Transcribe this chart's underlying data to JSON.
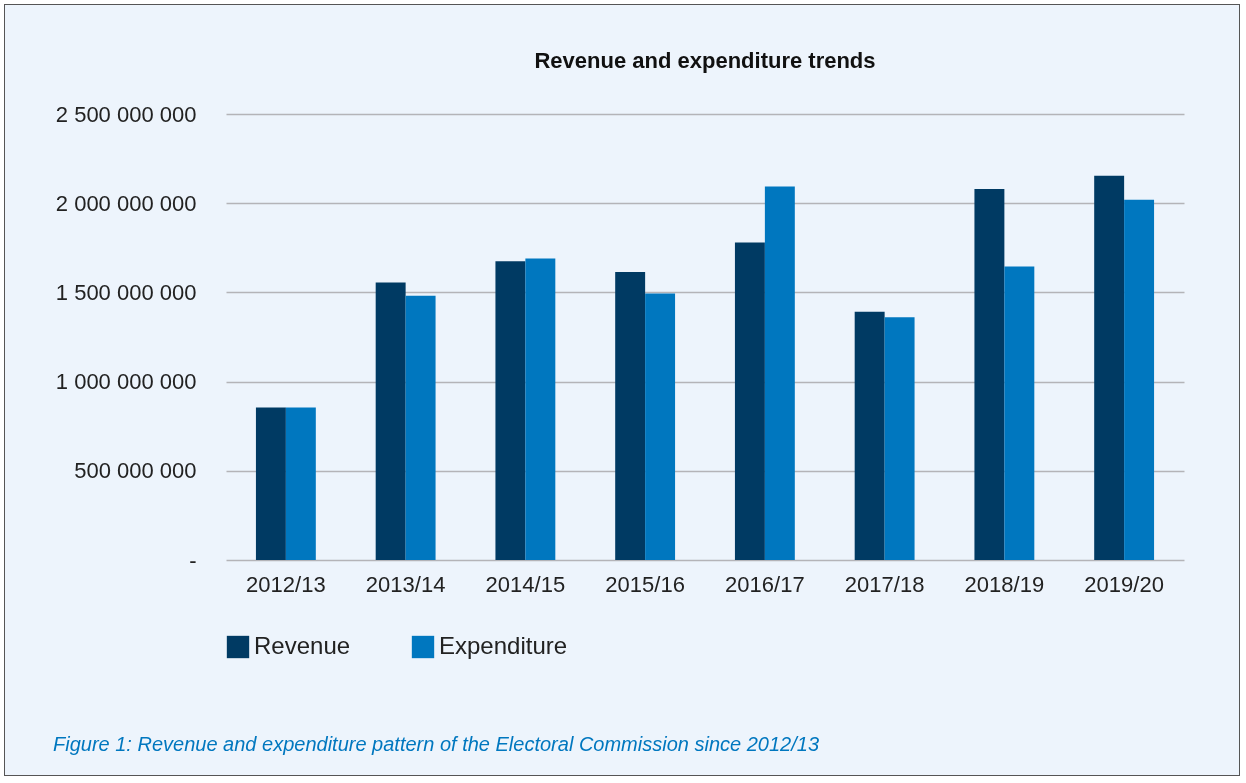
{
  "chart_data": {
    "type": "bar",
    "title": "Revenue and expenditure trends",
    "categories": [
      "2012/13",
      "2013/14",
      "2014/15",
      "2015/16",
      "2016/17",
      "2017/18",
      "2018/19",
      "2019/20"
    ],
    "series": [
      {
        "name": "Revenue",
        "color": "#003a63",
        "values": [
          855000000,
          1556000000,
          1675000000,
          1614000000,
          1780000000,
          1391000000,
          2079000000,
          2154000000
        ]
      },
      {
        "name": "Expenditure",
        "color": "#0077bf",
        "values": [
          855000000,
          1481000000,
          1690000000,
          1494000000,
          2094000000,
          1361000000,
          1645000000,
          2019000000
        ]
      }
    ],
    "ylim": [
      0,
      2500000000
    ],
    "yticks": [
      {
        "value": 0,
        "label": "-"
      },
      {
        "value": 500000000,
        "label": "500 000 000"
      },
      {
        "value": 1000000000,
        "label": "1 000 000 000"
      },
      {
        "value": 1500000000,
        "label": "1 500 000 000"
      },
      {
        "value": 2000000000,
        "label": "2 000 000 000"
      },
      {
        "value": 2500000000,
        "label": "2 500 000 000"
      }
    ],
    "grid": "y",
    "legend": "bottom",
    "annotations": [
      "Figure 1: Revenue and expenditure pattern of the Electoral Commission since 2012/13"
    ]
  }
}
